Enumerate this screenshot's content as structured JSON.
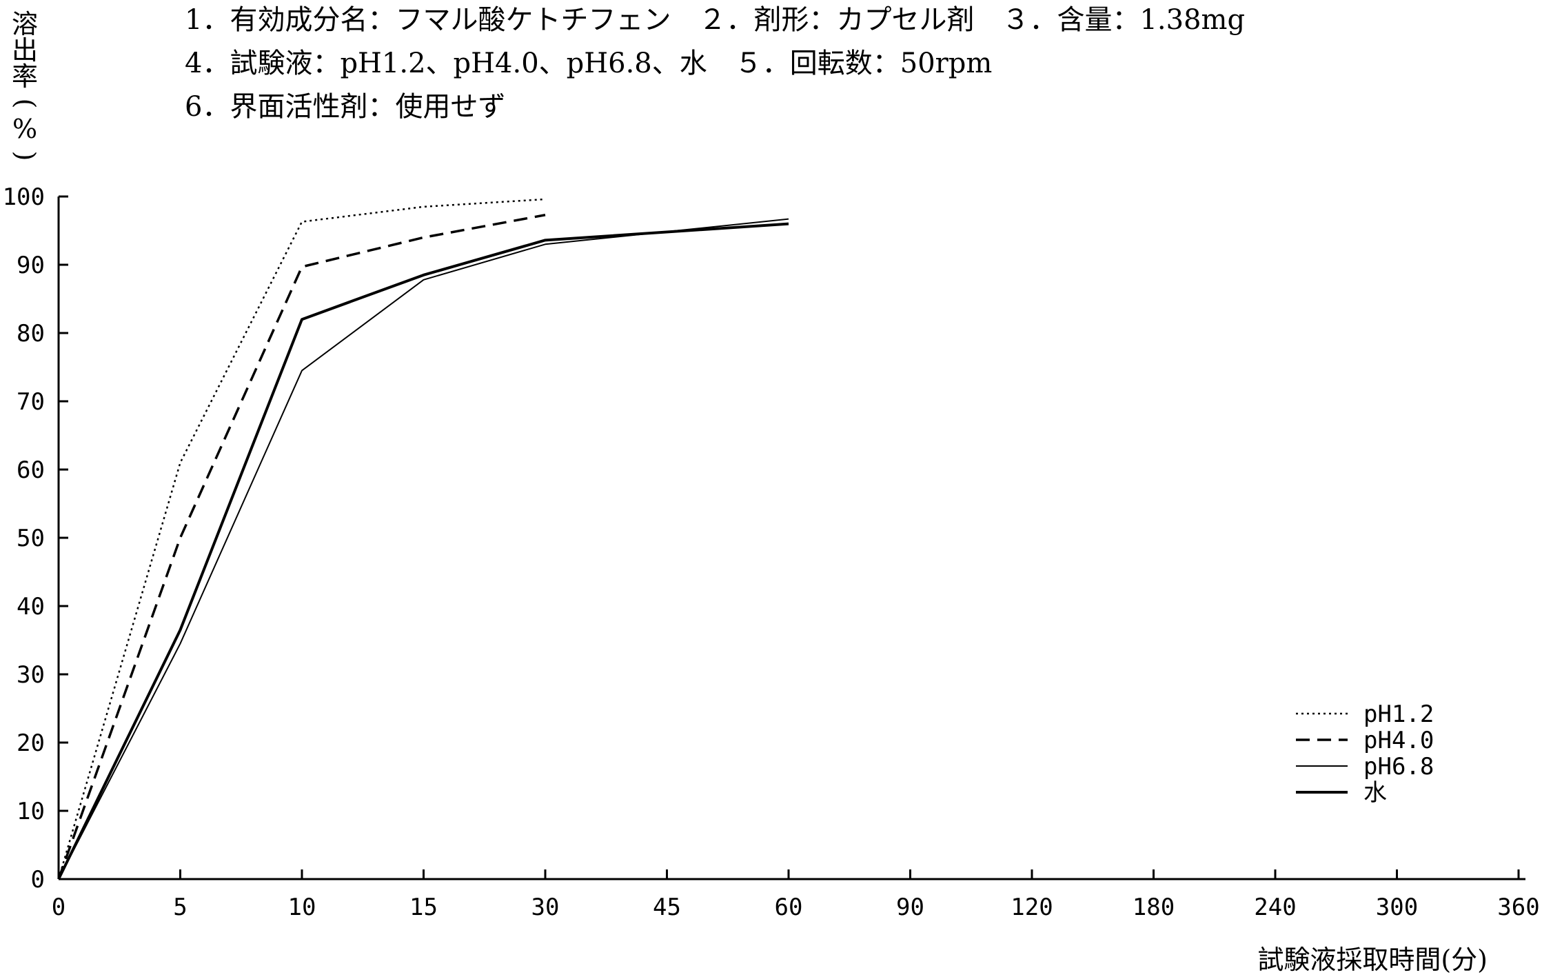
{
  "header_lines": [
    "1．有効成分名：フマル酸ケトチフェン　２．剤形：カプセル剤　３．含量：1.38mg",
    "4．試験液：pH1.2、pH4.0、pH6.8、水　５．回転数：50rpm",
    "6．界面活性剤：使用せず"
  ],
  "chart_data": {
    "type": "line",
    "title": "",
    "xlabel": "試験液採取時間(分)",
    "ylabel": "溶出率(%)",
    "ylabel_chars": [
      "溶",
      "出",
      "率",
      "(",
      "%",
      ")"
    ],
    "categories": [
      "0",
      "5",
      "10",
      "15",
      "30",
      "45",
      "60",
      "90",
      "120",
      "180",
      "240",
      "300",
      "360"
    ],
    "ylim": [
      0,
      100
    ],
    "yticks": [
      "0",
      "10",
      "20",
      "30",
      "40",
      "50",
      "60",
      "70",
      "80",
      "90",
      "100"
    ],
    "grid": false,
    "legend_position": "right",
    "series": [
      {
        "name": "pH1.2",
        "style": "dotted",
        "color": "#000000",
        "points": [
          [
            "0",
            0
          ],
          [
            "5",
            61
          ],
          [
            "10",
            96.3
          ],
          [
            "15",
            98.5
          ],
          [
            "30",
            99.6
          ]
        ]
      },
      {
        "name": "pH4.0",
        "style": "dashed",
        "color": "#000000",
        "points": [
          [
            "0",
            0
          ],
          [
            "5",
            50
          ],
          [
            "10",
            89.7
          ],
          [
            "15",
            94
          ],
          [
            "30",
            97.3
          ]
        ]
      },
      {
        "name": "pH6.8",
        "style": "thin",
        "color": "#000000",
        "points": [
          [
            "0",
            0
          ],
          [
            "5",
            34.5
          ],
          [
            "10",
            74.5
          ],
          [
            "15",
            87.8
          ],
          [
            "30",
            93
          ],
          [
            "60",
            96.7
          ]
        ]
      },
      {
        "name": "水",
        "style": "solid",
        "color": "#000000",
        "points": [
          [
            "0",
            0
          ],
          [
            "5",
            36.5
          ],
          [
            "10",
            82
          ],
          [
            "15",
            88.5
          ],
          [
            "30",
            93.6
          ],
          [
            "60",
            96
          ]
        ]
      }
    ]
  }
}
